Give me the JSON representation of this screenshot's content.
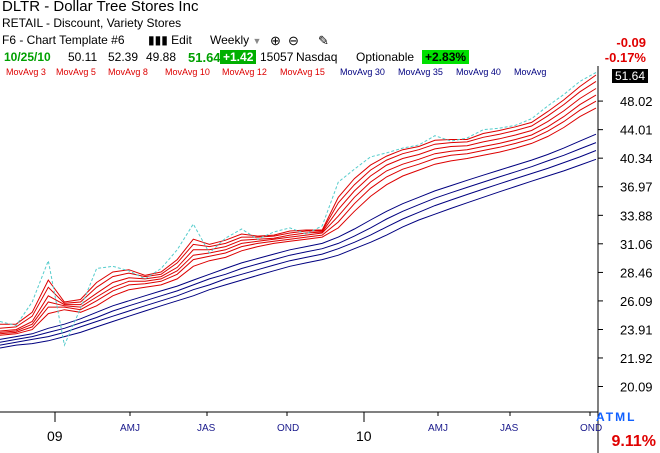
{
  "header": {
    "title": "DLTR - Dollar Tree Stores Inc",
    "industry": "RETAIL - Discount, Variety Stores",
    "template": "F6 - Chart Template #6",
    "edit_label": "Edit",
    "period": "Weekly",
    "change_abs": "-0.09",
    "change_pct": "-0.17%"
  },
  "quote": {
    "date": "10/25/10",
    "open": "50.11",
    "high": "52.39",
    "low": "49.88",
    "close": "51.64",
    "change": "+1.42",
    "volume": "15057",
    "exchange": "Nasdaq",
    "optionable": "Optionable",
    "pct_change": "+2.83%"
  },
  "indicators": {
    "last_price": "51.64",
    "rel_strength": "9.11%",
    "atml": "ATML"
  },
  "colors": {
    "short_ma": "#dd0000",
    "long_ma": "#000080",
    "price": "#55cccc"
  },
  "chart_data": {
    "type": "line",
    "title": "",
    "y_ticks": [
      48.02,
      44.01,
      40.34,
      36.97,
      33.88,
      31.06,
      28.46,
      26.09,
      23.91,
      21.92,
      20.09
    ],
    "y_scale": "log",
    "ylim": [
      18.7,
      52.8
    ],
    "x_ticks": [
      "09",
      "AMJ",
      "JAS",
      "OND",
      "10",
      "AMJ",
      "JAS",
      "OND"
    ],
    "series_labels": [
      "MovAvg 3",
      "MovAvg 5",
      "MovAvg 8",
      "MovAvg 10",
      "MovAvg 12",
      "MovAvg 15",
      "MovAvg 30",
      "MovAvg 35",
      "MovAvg 40",
      "MovAvg"
    ],
    "short_series": [
      {
        "name": "MovAvg 3",
        "values": [
          24.3,
          24.3,
          25.2,
          27.8,
          26.0,
          26.2,
          27.6,
          28.5,
          28.7,
          28.2,
          28.5,
          29.6,
          31.5,
          31.0,
          31.4,
          32.0,
          31.8,
          31.9,
          32.3,
          32.4,
          32.4,
          35.8,
          37.9,
          39.5,
          40.6,
          41.4,
          41.8,
          42.6,
          42.7,
          42.7,
          43.5,
          43.9,
          44.4,
          45.0,
          46.5,
          48.2,
          50.2,
          52.0
        ]
      },
      {
        "name": "MovAvg 5",
        "values": [
          24.0,
          24.1,
          24.9,
          27.2,
          25.9,
          26.0,
          27.2,
          28.1,
          28.4,
          28.1,
          28.3,
          29.3,
          31.0,
          30.8,
          31.1,
          31.7,
          31.7,
          31.8,
          32.1,
          32.3,
          32.3,
          35.2,
          37.2,
          38.9,
          40.1,
          40.9,
          41.4,
          42.1,
          42.3,
          42.4,
          43.0,
          43.4,
          43.9,
          44.5,
          45.9,
          47.5,
          49.4,
          51.0
        ]
      },
      {
        "name": "MovAvg 8",
        "values": [
          23.8,
          23.9,
          24.5,
          26.5,
          25.8,
          25.8,
          26.7,
          27.6,
          28.0,
          27.9,
          28.1,
          28.9,
          30.5,
          30.5,
          30.8,
          31.4,
          31.5,
          31.6,
          31.9,
          32.1,
          32.2,
          34.5,
          36.5,
          38.2,
          39.5,
          40.3,
          40.8,
          41.5,
          41.8,
          41.9,
          42.4,
          42.8,
          43.3,
          43.9,
          45.1,
          46.6,
          48.4,
          49.9
        ]
      },
      {
        "name": "MovAvg 10",
        "values": [
          23.7,
          23.8,
          24.3,
          26.0,
          25.7,
          25.6,
          26.4,
          27.2,
          27.7,
          27.7,
          27.9,
          28.6,
          30.0,
          30.2,
          30.5,
          31.1,
          31.3,
          31.5,
          31.7,
          31.9,
          32.1,
          33.8,
          35.8,
          37.5,
          38.8,
          39.6,
          40.2,
          40.9,
          41.2,
          41.4,
          41.8,
          42.2,
          42.7,
          43.3,
          44.4,
          45.8,
          47.5,
          48.9
        ]
      },
      {
        "name": "MovAvg 12",
        "values": [
          23.6,
          23.7,
          24.1,
          25.6,
          25.6,
          25.4,
          26.1,
          26.9,
          27.4,
          27.5,
          27.7,
          28.3,
          29.6,
          29.9,
          30.2,
          30.8,
          31.1,
          31.3,
          31.5,
          31.7,
          31.9,
          33.2,
          35.1,
          36.8,
          38.1,
          39.0,
          39.6,
          40.3,
          40.7,
          40.9,
          41.3,
          41.7,
          42.2,
          42.8,
          43.8,
          45.1,
          46.7,
          48.0
        ]
      },
      {
        "name": "MovAvg 15",
        "values": [
          23.5,
          23.6,
          23.9,
          25.1,
          25.4,
          25.2,
          25.7,
          26.5,
          27.0,
          27.2,
          27.4,
          27.9,
          29.0,
          29.5,
          29.8,
          30.4,
          30.8,
          31.1,
          31.3,
          31.5,
          31.7,
          32.6,
          34.3,
          35.9,
          37.2,
          38.2,
          38.9,
          39.6,
          40.0,
          40.3,
          40.7,
          41.1,
          41.6,
          42.2,
          43.1,
          44.3,
          45.8,
          47.0
        ]
      }
    ],
    "long_series": [
      {
        "name": "MovAvg 30",
        "values": [
          23.2,
          23.4,
          23.6,
          24.0,
          24.3,
          24.7,
          25.2,
          25.7,
          26.1,
          26.5,
          26.9,
          27.3,
          27.8,
          28.3,
          28.8,
          29.3,
          29.7,
          30.1,
          30.5,
          30.8,
          31.1,
          31.7,
          32.5,
          33.4,
          34.3,
          35.1,
          35.8,
          36.5,
          37.1,
          37.7,
          38.3,
          38.9,
          39.5,
          40.1,
          40.8,
          41.6,
          42.5,
          43.4
        ]
      },
      {
        "name": "MovAvg 35",
        "values": [
          23.0,
          23.2,
          23.4,
          23.7,
          24.0,
          24.4,
          24.8,
          25.3,
          25.7,
          26.1,
          26.5,
          26.9,
          27.4,
          27.9,
          28.3,
          28.8,
          29.2,
          29.6,
          30.0,
          30.3,
          30.6,
          31.1,
          31.8,
          32.6,
          33.5,
          34.3,
          35.0,
          35.7,
          36.3,
          36.9,
          37.5,
          38.1,
          38.7,
          39.3,
          40.0,
          40.7,
          41.5,
          42.3
        ]
      },
      {
        "name": "MovAvg 40",
        "values": [
          22.8,
          23.0,
          23.2,
          23.4,
          23.7,
          24.1,
          24.5,
          24.9,
          25.3,
          25.7,
          26.1,
          26.5,
          27.0,
          27.4,
          27.9,
          28.3,
          28.7,
          29.1,
          29.5,
          29.8,
          30.1,
          30.6,
          31.2,
          31.9,
          32.7,
          33.5,
          34.2,
          34.9,
          35.5,
          36.1,
          36.7,
          37.3,
          37.9,
          38.5,
          39.1,
          39.8,
          40.5,
          41.3
        ]
      },
      {
        "name": "MovAvg",
        "values": [
          22.6,
          22.8,
          22.9,
          23.1,
          23.4,
          23.7,
          24.1,
          24.5,
          24.9,
          25.3,
          25.7,
          26.1,
          26.5,
          27.0,
          27.4,
          27.8,
          28.2,
          28.6,
          29.0,
          29.3,
          29.6,
          30.0,
          30.6,
          31.2,
          31.9,
          32.7,
          33.4,
          34.0,
          34.6,
          35.2,
          35.8,
          36.4,
          37.0,
          37.6,
          38.2,
          38.8,
          39.5,
          40.2
        ]
      }
    ],
    "price_series": {
      "name": "price",
      "values": [
        24.5,
        24.2,
        26.0,
        29.5,
        22.8,
        25.5,
        28.8,
        29.0,
        28.6,
        27.9,
        28.8,
        30.5,
        33.0,
        30.2,
        31.6,
        32.5,
        31.5,
        32.2,
        32.6,
        32.0,
        32.8,
        37.5,
        39.0,
        40.5,
        41.0,
        41.6,
        42.0,
        43.2,
        42.5,
        42.9,
        44.0,
        44.2,
        44.6,
        45.5,
        47.3,
        49.0,
        51.0,
        52.4
      ]
    }
  }
}
